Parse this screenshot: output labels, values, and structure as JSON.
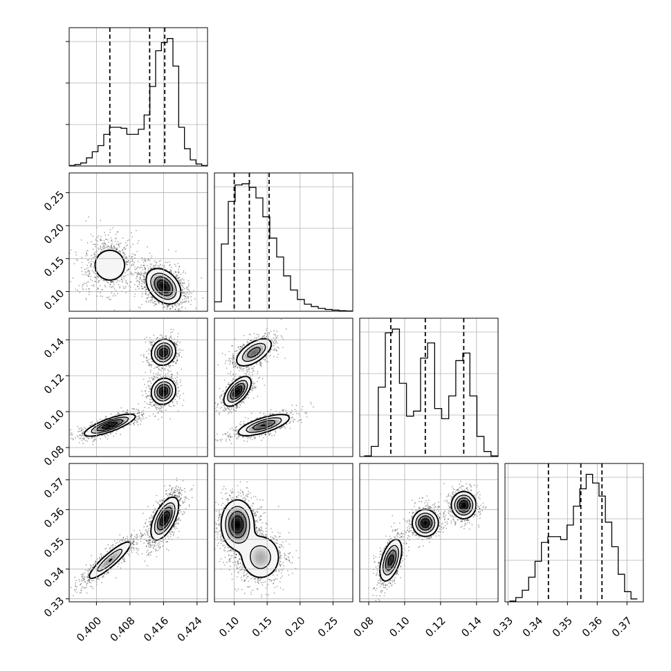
{
  "chart_data": {
    "type": "corner",
    "grid": true,
    "n_params": 4,
    "params": [
      {
        "xlim": [
          0.3935,
          0.4265
        ],
        "ticks": [
          0.4,
          0.408,
          0.416,
          0.424
        ],
        "tick_labels": [
          "0.400",
          "0.408",
          "0.416",
          "0.424"
        ],
        "quantiles": [
          0.4032,
          0.4127,
          0.4163
        ],
        "hist_counts": [
          0.5,
          1.5,
          3,
          8,
          14,
          20,
          31,
          38,
          38,
          37,
          31,
          31,
          36,
          50,
          78,
          113,
          121,
          125,
          98,
          38,
          17,
          6,
          2,
          0.5
        ]
      },
      {
        "xlim": [
          0.07,
          0.28
        ],
        "ticks": [
          0.1,
          0.15,
          0.2,
          0.25
        ],
        "tick_labels": [
          "0.10",
          "0.15",
          "0.20",
          "0.25"
        ],
        "quantiles": [
          0.1,
          0.123,
          0.153
        ],
        "hist_counts": [
          8,
          57,
          93,
          107,
          108,
          105,
          96,
          80,
          62,
          46,
          30,
          18,
          10,
          6,
          4,
          2.5,
          1.5,
          1,
          0.5,
          0.3
        ],
        "hist_range": [
          0.07,
          0.28
        ]
      },
      {
        "xlim": [
          0.075,
          0.152
        ],
        "ticks": [
          0.08,
          0.1,
          0.12,
          0.14
        ],
        "tick_labels": [
          "0.08",
          "0.10",
          "0.12",
          "0.14"
        ],
        "quantiles": [
          0.0923,
          0.1115,
          0.1329
        ],
        "hist_counts": [
          0.5,
          8,
          55,
          98,
          101,
          58,
          32,
          36,
          78,
          90,
          38,
          30,
          48,
          76,
          82,
          48,
          16,
          4,
          0.5
        ],
        "hist_range": [
          0.0775,
          0.152
        ]
      },
      {
        "xlim": [
          0.329,
          0.3755
        ],
        "ticks": [
          0.33,
          0.34,
          0.35,
          0.36,
          0.37
        ],
        "tick_labels": [
          "0.33",
          "0.34",
          "0.35",
          "0.36",
          "0.37"
        ],
        "quantiles": [
          0.3436,
          0.3545,
          0.3616
        ],
        "hist_counts": [
          0.5,
          3,
          8,
          17,
          28,
          41,
          45,
          45,
          43,
          53,
          66,
          78,
          88,
          82,
          73,
          55,
          38,
          19,
          7,
          2
        ],
        "hist_range": [
          0.3305,
          0.3735
        ]
      }
    ],
    "row_ylims": [
      null,
      [
        0.07,
        0.28
      ],
      [
        0.075,
        0.152
      ],
      [
        0.329,
        0.3755
      ]
    ],
    "row_tick_labels": {
      "1": [
        "0.10",
        "0.15",
        "0.20",
        "0.25"
      ],
      "2": [
        "0.08",
        "0.10",
        "0.12",
        "0.14"
      ],
      "3": [
        "0.33",
        "0.34",
        "0.35",
        "0.36",
        "0.37"
      ]
    },
    "modes": {
      "1_0": [
        {
          "x": 0.4032,
          "y": 0.14,
          "sx": 0.0028,
          "sy": 0.018,
          "rho": 0.0,
          "w": 0.35
        },
        {
          "x": 0.416,
          "y": 0.108,
          "sx": 0.002,
          "sy": 0.013,
          "rho": -0.35,
          "w": 0.65
        }
      ],
      "2_0": [
        {
          "x": 0.4032,
          "y": 0.0925,
          "sx": 0.003,
          "sy": 0.003,
          "rho": 0.8,
          "w": 0.35
        },
        {
          "x": 0.416,
          "y": 0.1113,
          "sx": 0.0014,
          "sy": 0.0035,
          "rho": 0.1,
          "w": 0.33
        },
        {
          "x": 0.416,
          "y": 0.133,
          "sx": 0.0014,
          "sy": 0.0035,
          "rho": 0.1,
          "w": 0.32
        }
      ],
      "3_0": [
        {
          "x": 0.4032,
          "y": 0.343,
          "sx": 0.0028,
          "sy": 0.0035,
          "rho": 0.9,
          "w": 0.35
        },
        {
          "x": 0.4163,
          "y": 0.357,
          "sx": 0.0016,
          "sy": 0.0035,
          "rho": 0.6,
          "w": 0.65
        }
      ],
      "2_1": [
        {
          "x": 0.145,
          "y": 0.0925,
          "sx": 0.02,
          "sy": 0.003,
          "rho": 0.7,
          "w": 0.35
        },
        {
          "x": 0.105,
          "y": 0.1113,
          "sx": 0.01,
          "sy": 0.004,
          "rho": 0.6,
          "w": 0.33
        },
        {
          "x": 0.13,
          "y": 0.133,
          "sx": 0.014,
          "sy": 0.004,
          "rho": 0.6,
          "w": 0.32
        }
      ],
      "3_1": [
        {
          "x": 0.105,
          "y": 0.355,
          "sx": 0.012,
          "sy": 0.004,
          "rho": 0.0,
          "w": 0.6
        },
        {
          "x": 0.14,
          "y": 0.344,
          "sx": 0.016,
          "sy": 0.004,
          "rho": 0.0,
          "w": 0.4
        }
      ],
      "3_2": [
        {
          "x": 0.0923,
          "y": 0.343,
          "sx": 0.003,
          "sy": 0.0035,
          "rho": 0.5,
          "w": 0.35
        },
        {
          "x": 0.1115,
          "y": 0.3555,
          "sx": 0.0035,
          "sy": 0.0022,
          "rho": 0.0,
          "w": 0.33
        },
        {
          "x": 0.1329,
          "y": 0.3615,
          "sx": 0.0033,
          "sy": 0.0022,
          "rho": 0.0,
          "w": 0.32
        }
      ]
    }
  }
}
